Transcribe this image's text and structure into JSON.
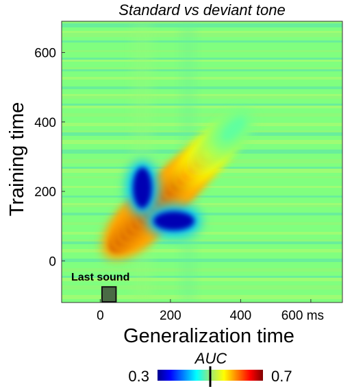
{
  "chart_data": {
    "type": "heatmap",
    "title": "Standard vs deviant tone",
    "xlabel": "Generalization time",
    "ylabel": "Training time",
    "xlim": [
      -110,
      690
    ],
    "ylim": [
      -120,
      690
    ],
    "x_ticks": [
      {
        "value": 0,
        "label": "0"
      },
      {
        "value": 200,
        "label": "200"
      },
      {
        "value": 400,
        "label": "400"
      },
      {
        "value": 600,
        "label": "600 ms"
      }
    ],
    "y_ticks": [
      {
        "value": 0,
        "label": "0"
      },
      {
        "value": 200,
        "label": "200"
      },
      {
        "value": 400,
        "label": "400"
      },
      {
        "value": 600,
        "label": "600"
      }
    ],
    "annotation": {
      "text": "Last sound",
      "x_range": [
        5,
        45
      ],
      "y_range": [
        -120,
        -75
      ],
      "color": "#4a6b45"
    },
    "colorbar": {
      "label": "AUC",
      "min": 0.3,
      "max": 0.7,
      "min_label": "0.3",
      "max_label": "0.7",
      "marker_value": 0.5,
      "colormap": "jet"
    },
    "background_value": 0.5,
    "features": [
      {
        "kind": "diagonal-ridge",
        "x": [
          90,
          380
        ],
        "y": [
          90,
          380
        ],
        "peak": 0.69
      },
      {
        "kind": "blob",
        "x": 120,
        "y": 210,
        "value": 0.32
      },
      {
        "kind": "blob",
        "x": 210,
        "y": 115,
        "value": 0.32
      }
    ]
  }
}
